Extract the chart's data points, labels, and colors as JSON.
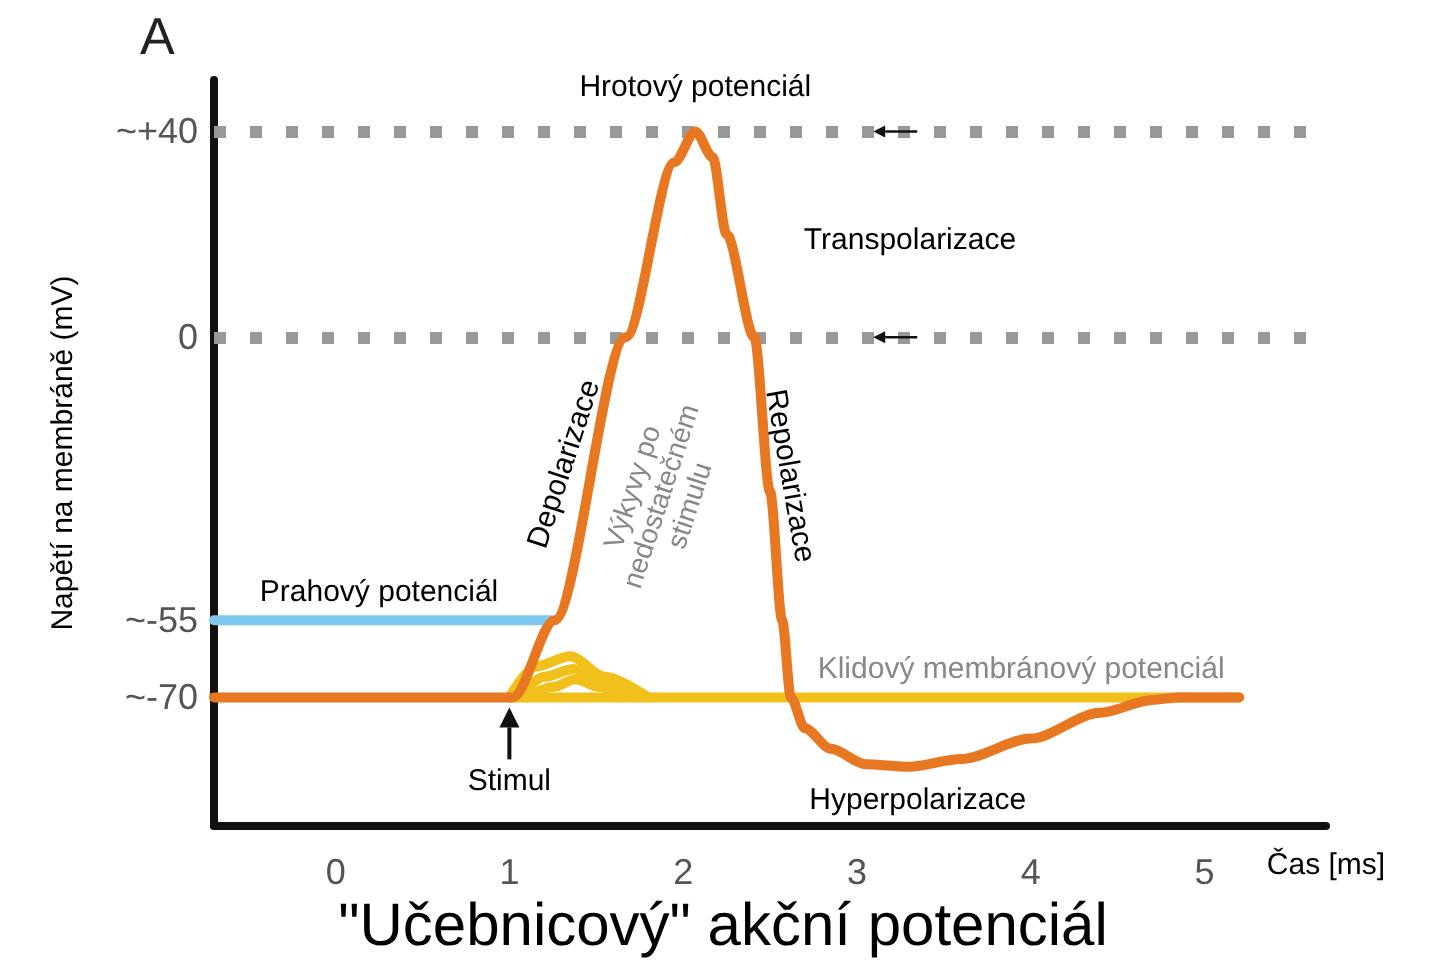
{
  "chart_data": {
    "type": "line",
    "title": "\"Učebnicový\" akční potenciál",
    "xlabel": "Čas [ms]",
    "ylabel": "Napětí na membráně (mV)",
    "xlim": [
      -0.7,
      5.7
    ],
    "xticks": [
      0,
      1,
      2,
      3,
      4,
      5
    ],
    "ylim": [
      -95,
      50
    ],
    "yticks": [
      {
        "value": 40,
        "label": "~+40"
      },
      0,
      {
        "value": -55,
        "label": "~-55"
      },
      {
        "value": -70,
        "label": "~-70"
      }
    ],
    "grid": false,
    "marker": "none",
    "line_style": "solid",
    "ref_lines": [
      {
        "axis": "y",
        "value": 40,
        "color": "#999999",
        "line_style": "dotted"
      },
      {
        "axis": "y",
        "value": 0,
        "color": "#999999",
        "line_style": "dotted"
      }
    ],
    "series": [
      {
        "color": "#7ec8ef",
        "x": [
          -0.7,
          1.24
        ],
        "values": [
          -55,
          -55
        ]
      },
      {
        "color": "#f2c01b",
        "x": [
          1.0,
          1.15,
          1.35,
          1.55,
          1.8
        ],
        "values": [
          -70,
          -64,
          -62,
          -66,
          -70
        ]
      },
      {
        "color": "#f2c01b",
        "x": [
          1.05,
          1.2,
          1.37,
          1.55,
          1.72
        ],
        "values": [
          -70,
          -66,
          -64.5,
          -67,
          -70
        ]
      },
      {
        "color": "#f2c01b",
        "x": [
          1.1,
          1.25,
          1.38,
          1.52,
          1.65
        ],
        "values": [
          -70,
          -68,
          -66.5,
          -68,
          -70
        ]
      },
      {
        "color": "#f2c01b",
        "x": [
          1.0,
          5.2
        ],
        "values": [
          -70,
          -70
        ]
      },
      {
        "color": "#e87722",
        "x": [
          -0.7,
          1.02,
          1.26,
          1.67,
          1.95,
          2.07,
          2.17,
          2.25,
          2.41,
          2.5,
          2.57,
          2.62,
          2.7,
          2.85,
          3.05,
          3.3,
          3.6,
          4.0,
          4.4,
          4.7,
          4.85,
          5.2
        ],
        "values": [
          -70,
          -70,
          -55,
          0,
          34,
          40,
          35,
          20,
          0,
          -30,
          -55,
          -70,
          -76,
          -80,
          -83,
          -83.5,
          -82,
          -78,
          -73,
          -70.5,
          -70,
          -70
        ]
      }
    ],
    "annotations": [
      "A",
      {
        "text": "Hrotový potenciál",
        "x": 2.07,
        "y": 40
      },
      "Transpolarizace",
      "Depolarizace",
      "Repolarizace",
      "Výkyvy po\nnedostatečném\nstimulu",
      {
        "text": "Prahový potenciál",
        "x": 0.25,
        "y": -55
      },
      {
        "text": "Klidový membránový potenciál",
        "x": 3.6,
        "y": -70
      },
      {
        "text": "Stimul",
        "x": 1,
        "y": -70
      },
      {
        "text": "Hyperpolarizace",
        "x": 3.35,
        "y": -83
      }
    ]
  }
}
